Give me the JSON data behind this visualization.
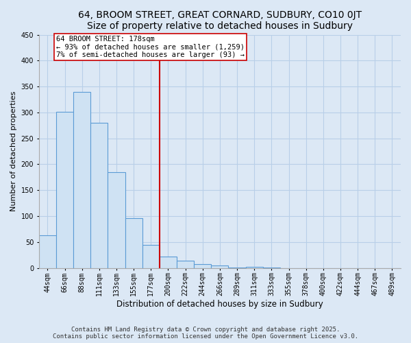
{
  "title": "64, BROOM STREET, GREAT CORNARD, SUDBURY, CO10 0JT",
  "subtitle": "Size of property relative to detached houses in Sudbury",
  "xlabel": "Distribution of detached houses by size in Sudbury",
  "ylabel": "Number of detached properties",
  "bar_labels": [
    "44sqm",
    "66sqm",
    "88sqm",
    "111sqm",
    "133sqm",
    "155sqm",
    "177sqm",
    "200sqm",
    "222sqm",
    "244sqm",
    "266sqm",
    "289sqm",
    "311sqm",
    "333sqm",
    "355sqm",
    "378sqm",
    "400sqm",
    "422sqm",
    "444sqm",
    "467sqm",
    "489sqm"
  ],
  "bar_values": [
    63,
    301,
    340,
    280,
    185,
    96,
    45,
    22,
    14,
    7,
    5,
    1,
    2,
    1,
    0,
    0,
    0,
    0,
    0,
    0,
    0
  ],
  "bar_color": "#cfe2f3",
  "bar_edge_color": "#5b9bd5",
  "vline_x_index": 6,
  "vline_color": "#cc0000",
  "annotation_title": "64 BROOM STREET: 178sqm",
  "annotation_line1": "← 93% of detached houses are smaller (1,259)",
  "annotation_line2": "7% of semi-detached houses are larger (93) →",
  "annotation_box_color": "#ffffff",
  "annotation_box_edge": "#cc0000",
  "ylim": [
    0,
    450
  ],
  "footnote1": "Contains HM Land Registry data © Crown copyright and database right 2025.",
  "footnote2": "Contains public sector information licensed under the Open Government Licence v3.0.",
  "background_color": "#dce8f5",
  "plot_background": "#dce8f5",
  "grid_color": "#b8cfe8",
  "title_fontsize": 10,
  "subtitle_fontsize": 9,
  "xlabel_fontsize": 8.5,
  "ylabel_fontsize": 8,
  "tick_fontsize": 7,
  "footnote_fontsize": 6.5,
  "annotation_fontsize": 7.5
}
